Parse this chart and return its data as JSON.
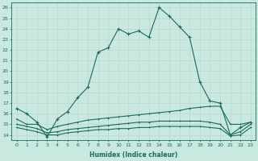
{
  "xlabel": "Humidex (Indice chaleur)",
  "background_color": "#c8e8e0",
  "line_color": "#1a6b5a",
  "xlim": [
    -0.5,
    23.5
  ],
  "ylim": [
    13.5,
    26.5
  ],
  "yticks": [
    14,
    15,
    16,
    17,
    18,
    19,
    20,
    21,
    22,
    23,
    24,
    25,
    26
  ],
  "xticks": [
    0,
    1,
    2,
    3,
    4,
    5,
    6,
    7,
    8,
    9,
    10,
    11,
    12,
    13,
    14,
    15,
    16,
    17,
    18,
    19,
    20,
    21,
    22,
    23
  ],
  "series1_x": [
    0,
    1,
    2,
    3,
    4,
    5,
    6,
    7,
    8,
    9,
    10,
    11,
    12,
    13,
    14,
    15,
    16,
    17,
    18,
    19,
    20,
    21,
    22,
    23
  ],
  "series1_y": [
    16.5,
    16.0,
    15.2,
    13.8,
    15.5,
    16.2,
    17.5,
    18.5,
    21.8,
    22.2,
    24.0,
    23.5,
    23.8,
    23.2,
    26.0,
    25.2,
    24.2,
    23.2,
    19.0,
    17.2,
    17.0,
    14.0,
    14.7,
    15.2
  ],
  "series2_x": [
    0,
    1,
    2,
    3,
    4,
    5,
    6,
    7,
    8,
    9,
    10,
    11,
    12,
    13,
    14,
    15,
    16,
    17,
    18,
    19,
    20,
    21,
    22,
    23
  ],
  "series2_y": [
    15.5,
    15.0,
    15.0,
    14.5,
    14.8,
    15.0,
    15.2,
    15.4,
    15.5,
    15.6,
    15.7,
    15.8,
    15.9,
    16.0,
    16.1,
    16.2,
    16.3,
    16.5,
    16.6,
    16.7,
    16.7,
    15.0,
    15.0,
    15.2
  ],
  "series3_x": [
    0,
    1,
    2,
    3,
    4,
    5,
    6,
    7,
    8,
    9,
    10,
    11,
    12,
    13,
    14,
    15,
    16,
    17,
    18,
    19,
    20,
    21,
    22,
    23
  ],
  "series3_y": [
    15.0,
    14.8,
    14.6,
    14.2,
    14.3,
    14.5,
    14.6,
    14.7,
    14.8,
    14.9,
    15.0,
    15.1,
    15.2,
    15.2,
    15.3,
    15.3,
    15.3,
    15.3,
    15.3,
    15.2,
    15.0,
    14.0,
    14.3,
    15.0
  ],
  "series4_x": [
    0,
    1,
    2,
    3,
    4,
    5,
    6,
    7,
    8,
    9,
    10,
    11,
    12,
    13,
    14,
    15,
    16,
    17,
    18,
    19,
    20,
    21,
    22,
    23
  ],
  "series4_y": [
    14.7,
    14.5,
    14.3,
    14.0,
    14.0,
    14.2,
    14.3,
    14.4,
    14.5,
    14.5,
    14.6,
    14.6,
    14.7,
    14.7,
    14.8,
    14.8,
    14.8,
    14.8,
    14.8,
    14.7,
    14.6,
    13.9,
    14.0,
    14.7
  ]
}
